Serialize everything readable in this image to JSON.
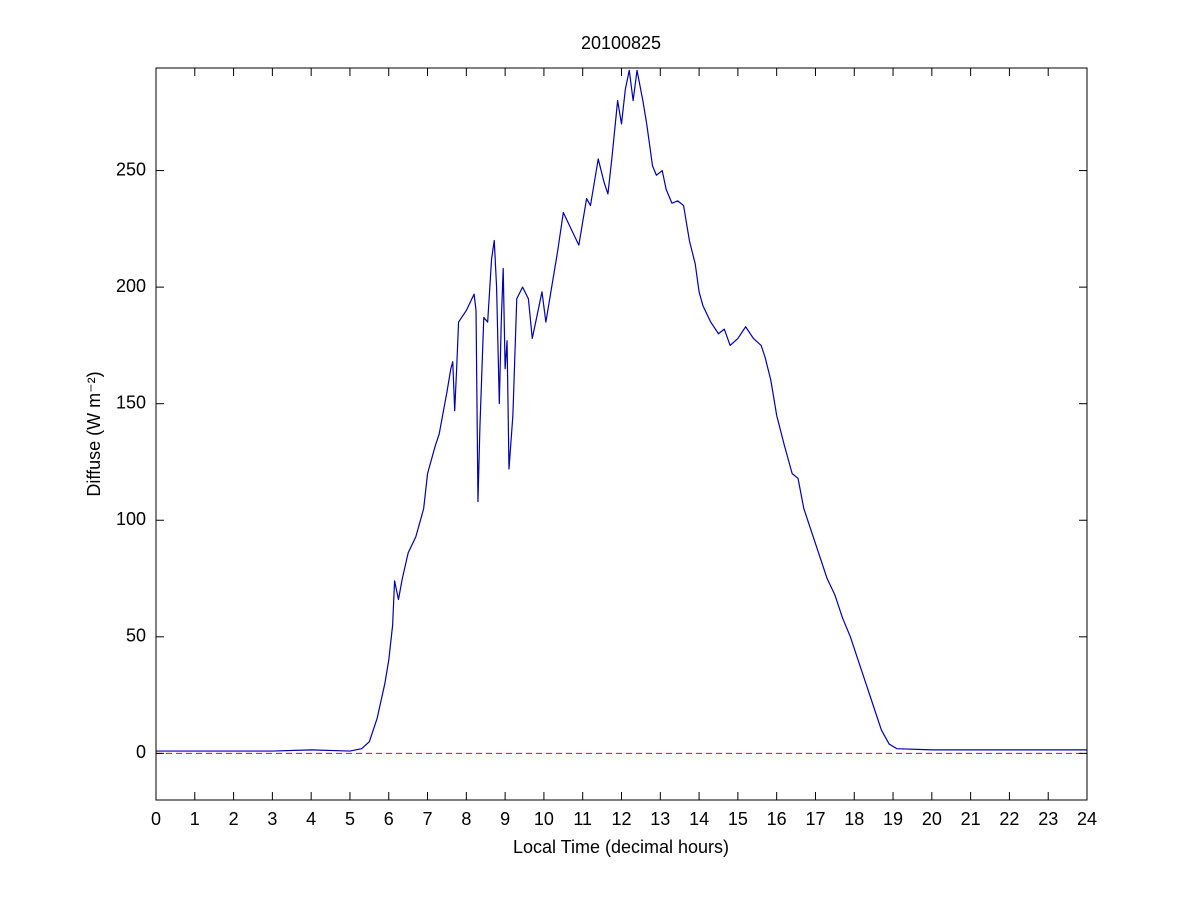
{
  "chart_data": {
    "type": "line",
    "title": "20100825",
    "x_label": "Local Time (decimal hours)",
    "y_label": "Diffuse (W m⁻²)",
    "xlim": [
      0,
      24
    ],
    "ylim": [
      -20,
      294
    ],
    "xticks": [
      0,
      1,
      2,
      3,
      4,
      5,
      6,
      7,
      8,
      9,
      10,
      11,
      12,
      13,
      14,
      15,
      16,
      17,
      18,
      19,
      20,
      21,
      22,
      23,
      24
    ],
    "yticks": [
      0,
      50,
      100,
      150,
      200,
      250
    ],
    "reference_line": {
      "value": 0,
      "color": "#ff0000"
    },
    "x": [
      0,
      1,
      2,
      3,
      4,
      5,
      5.3,
      5.5,
      5.7,
      5.9,
      6.0,
      6.1,
      6.15,
      6.25,
      6.35,
      6.5,
      6.7,
      6.9,
      7.0,
      7.2,
      7.3,
      7.5,
      7.6,
      7.65,
      7.7,
      7.75,
      7.8,
      8.0,
      8.2,
      8.25,
      8.3,
      8.35,
      8.45,
      8.55,
      8.65,
      8.72,
      8.78,
      8.85,
      8.9,
      8.95,
      9.0,
      9.05,
      9.1,
      9.2,
      9.3,
      9.45,
      9.6,
      9.7,
      9.85,
      9.95,
      10.05,
      10.2,
      10.35,
      10.5,
      10.7,
      10.9,
      11.1,
      11.2,
      11.4,
      11.55,
      11.65,
      11.75,
      11.9,
      12.0,
      12.1,
      12.2,
      12.3,
      12.4,
      12.55,
      12.65,
      12.8,
      12.9,
      13.05,
      13.15,
      13.3,
      13.45,
      13.6,
      13.75,
      13.9,
      14.0,
      14.1,
      14.3,
      14.5,
      14.65,
      14.8,
      15.0,
      15.2,
      15.4,
      15.6,
      15.7,
      15.85,
      16.0,
      16.2,
      16.4,
      16.55,
      16.7,
      16.9,
      17.1,
      17.3,
      17.5,
      17.7,
      17.9,
      18.1,
      18.3,
      18.5,
      18.7,
      18.9,
      19.1,
      20,
      21,
      22,
      23,
      24
    ],
    "series": [
      {
        "color": "#0000ad",
        "values": [
          1,
          1,
          1,
          1,
          1.5,
          1,
          2,
          5,
          15,
          30,
          40,
          55,
          74,
          66,
          75,
          86,
          93,
          105,
          120,
          132,
          137,
          155,
          165,
          168,
          147,
          165,
          185,
          190,
          197,
          190,
          108,
          140,
          187,
          185,
          212,
          220,
          200,
          150,
          185,
          208,
          165,
          177,
          122,
          145,
          195,
          200,
          195,
          178,
          190,
          198,
          185,
          200,
          215,
          232,
          225,
          218,
          238,
          235,
          255,
          245,
          240,
          255,
          280,
          270,
          285,
          293,
          280,
          293,
          280,
          270,
          252,
          248,
          250,
          242,
          236,
          237,
          235,
          220,
          210,
          198,
          192,
          185,
          180,
          182,
          175,
          178,
          183,
          178,
          175,
          170,
          160,
          145,
          132,
          120,
          118,
          105,
          95,
          85,
          75,
          68,
          58,
          50,
          40,
          30,
          20,
          10,
          4,
          2,
          1.5,
          1.5,
          1.5,
          1.5,
          1.5
        ]
      }
    ]
  }
}
